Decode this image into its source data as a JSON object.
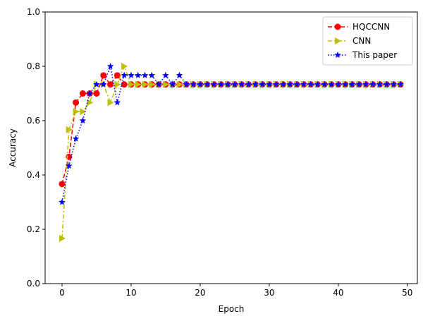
{
  "chart_data": {
    "type": "line",
    "xlabel": "Epoch",
    "ylabel": "Accuracy",
    "xlim": [
      -2.45,
      51.45
    ],
    "ylim": [
      0,
      1.0
    ],
    "xticks": [
      0,
      10,
      20,
      30,
      40,
      50
    ],
    "yticks": [
      0.0,
      0.2,
      0.4,
      0.6,
      0.8,
      1.0
    ],
    "grid": false,
    "legend_position": "top-right",
    "series": [
      {
        "name": "HQCCNN",
        "color": "#ff0000",
        "marker": "circle",
        "linestyle": "dashed",
        "values": [
          0.3667,
          0.4667,
          0.6667,
          0.7,
          0.7,
          0.7,
          0.7667,
          0.7333,
          0.7667,
          0.7333,
          0.7333,
          0.7333,
          0.7333,
          0.7333,
          0.7333,
          0.7333,
          0.7333,
          0.7333,
          0.7333,
          0.7333,
          0.7333,
          0.7333,
          0.7333,
          0.7333,
          0.7333,
          0.7333,
          0.7333,
          0.7333,
          0.7333,
          0.7333,
          0.7333,
          0.7333,
          0.7333,
          0.7333,
          0.7333,
          0.7333,
          0.7333,
          0.7333,
          0.7333,
          0.7333,
          0.7333,
          0.7333,
          0.7333,
          0.7333,
          0.7333,
          0.7333,
          0.7333,
          0.7333,
          0.7333,
          0.7333
        ]
      },
      {
        "name": "CNN",
        "color": "#bfbf00",
        "marker": "triangle-right",
        "linestyle": "dashdot",
        "values": [
          0.1667,
          0.5667,
          0.6333,
          0.6333,
          0.6667,
          0.7333,
          0.7333,
          0.6667,
          0.7333,
          0.8,
          0.7333,
          0.7333,
          0.7333,
          0.7333,
          0.7333,
          0.7333,
          0.7333,
          0.7333,
          0.7333,
          0.7333,
          0.7333,
          0.7333,
          0.7333,
          0.7333,
          0.7333,
          0.7333,
          0.7333,
          0.7333,
          0.7333,
          0.7333,
          0.7333,
          0.7333,
          0.7333,
          0.7333,
          0.7333,
          0.7333,
          0.7333,
          0.7333,
          0.7333,
          0.7333,
          0.7333,
          0.7333,
          0.7333,
          0.7333,
          0.7333,
          0.7333,
          0.7333,
          0.7333,
          0.7333,
          0.7333
        ]
      },
      {
        "name": "This paper",
        "color": "#0000ff",
        "marker": "star",
        "linestyle": "dotted",
        "values": [
          0.3,
          0.4333,
          0.5333,
          0.6,
          0.7,
          0.7333,
          0.7333,
          0.8,
          0.6667,
          0.7667,
          0.7667,
          0.7667,
          0.7667,
          0.7667,
          0.7333,
          0.7667,
          0.7333,
          0.7667,
          0.7333,
          0.7333,
          0.7333,
          0.7333,
          0.7333,
          0.7333,
          0.7333,
          0.7333,
          0.7333,
          0.7333,
          0.7333,
          0.7333,
          0.7333,
          0.7333,
          0.7333,
          0.7333,
          0.7333,
          0.7333,
          0.7333,
          0.7333,
          0.7333,
          0.7333,
          0.7333,
          0.7333,
          0.7333,
          0.7333,
          0.7333,
          0.7333,
          0.7333,
          0.7333,
          0.7333,
          0.7333
        ]
      }
    ]
  }
}
